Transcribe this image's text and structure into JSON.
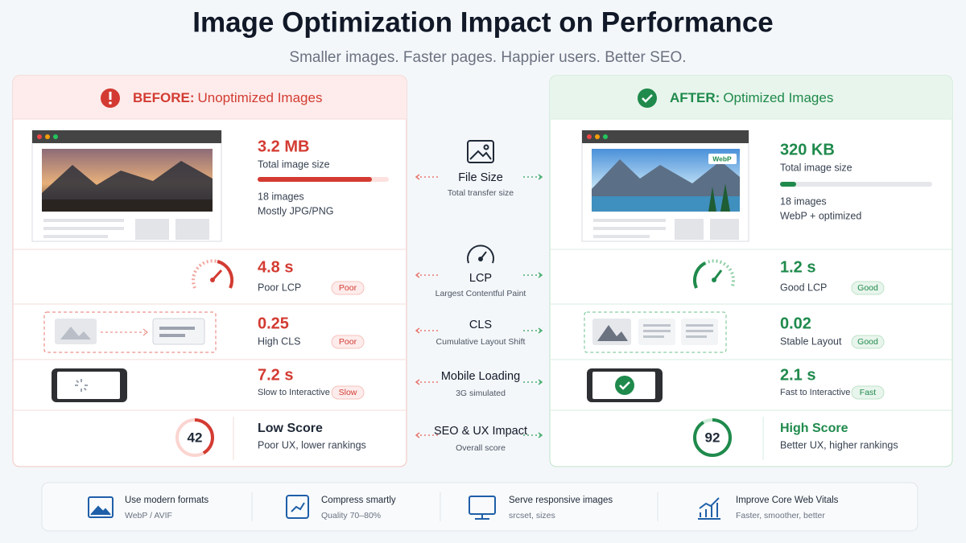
{
  "header": {
    "title": "Image Optimization Impact on Performance",
    "subtitle": "Smaller images. Faster pages. Happier users. Better SEO."
  },
  "before": {
    "heading_label": "BEFORE:",
    "heading_text": "Unoptimized Images",
    "file_size": {
      "value": "3.2 MB",
      "label": "Total image size",
      "details": [
        "18 images",
        "Mostly JPG/PNG"
      ]
    },
    "lcp": {
      "value": "4.8 s",
      "label": "Poor LCP",
      "badge": "Poor"
    },
    "cls": {
      "value": "0.25",
      "label": "High CLS",
      "badge": "Poor"
    },
    "mobile": {
      "value": "7.2 s",
      "label": "Slow to Interactive",
      "badge": "Slow"
    },
    "seo": {
      "value": "Low Score",
      "label": "Poor UX, lower rankings",
      "score": 42
    }
  },
  "after": {
    "heading_label": "AFTER:",
    "heading_text": "Optimized Images",
    "image_tag": "WebP",
    "file_size": {
      "value": "320 KB",
      "label": "Total image size",
      "details": [
        "18 images",
        "WebP + optimized"
      ]
    },
    "lcp": {
      "value": "1.2 s",
      "label": "Good LCP",
      "badge": "Good"
    },
    "cls": {
      "value": "0.02",
      "label": "Stable Layout",
      "badge": "Good"
    },
    "mobile": {
      "value": "2.1 s",
      "label": "Fast to Interactive",
      "badge": "Fast"
    },
    "seo": {
      "value": "High Score",
      "label": "Better UX, higher rankings",
      "score": 92
    }
  },
  "metrics": [
    {
      "name": "File Size",
      "desc": "Total transfer size"
    },
    {
      "name": "LCP",
      "desc": "Largest Contentful Paint"
    },
    {
      "name": "CLS",
      "desc": "Cumulative Layout Shift"
    },
    {
      "name": "Mobile Loading",
      "desc": "3G simulated"
    },
    {
      "name": "SEO & UX Impact",
      "desc": "Overall score"
    }
  ],
  "tips": [
    {
      "title": "Use modern formats",
      "desc": "WebP / AVIF"
    },
    {
      "title": "Compress smartly",
      "desc": "Quality 70–80%"
    },
    {
      "title": "Serve responsive images",
      "desc": "srcset, sizes"
    },
    {
      "title": "Improve Core Web Vitals",
      "desc": "Faster, smoother, better"
    }
  ]
}
